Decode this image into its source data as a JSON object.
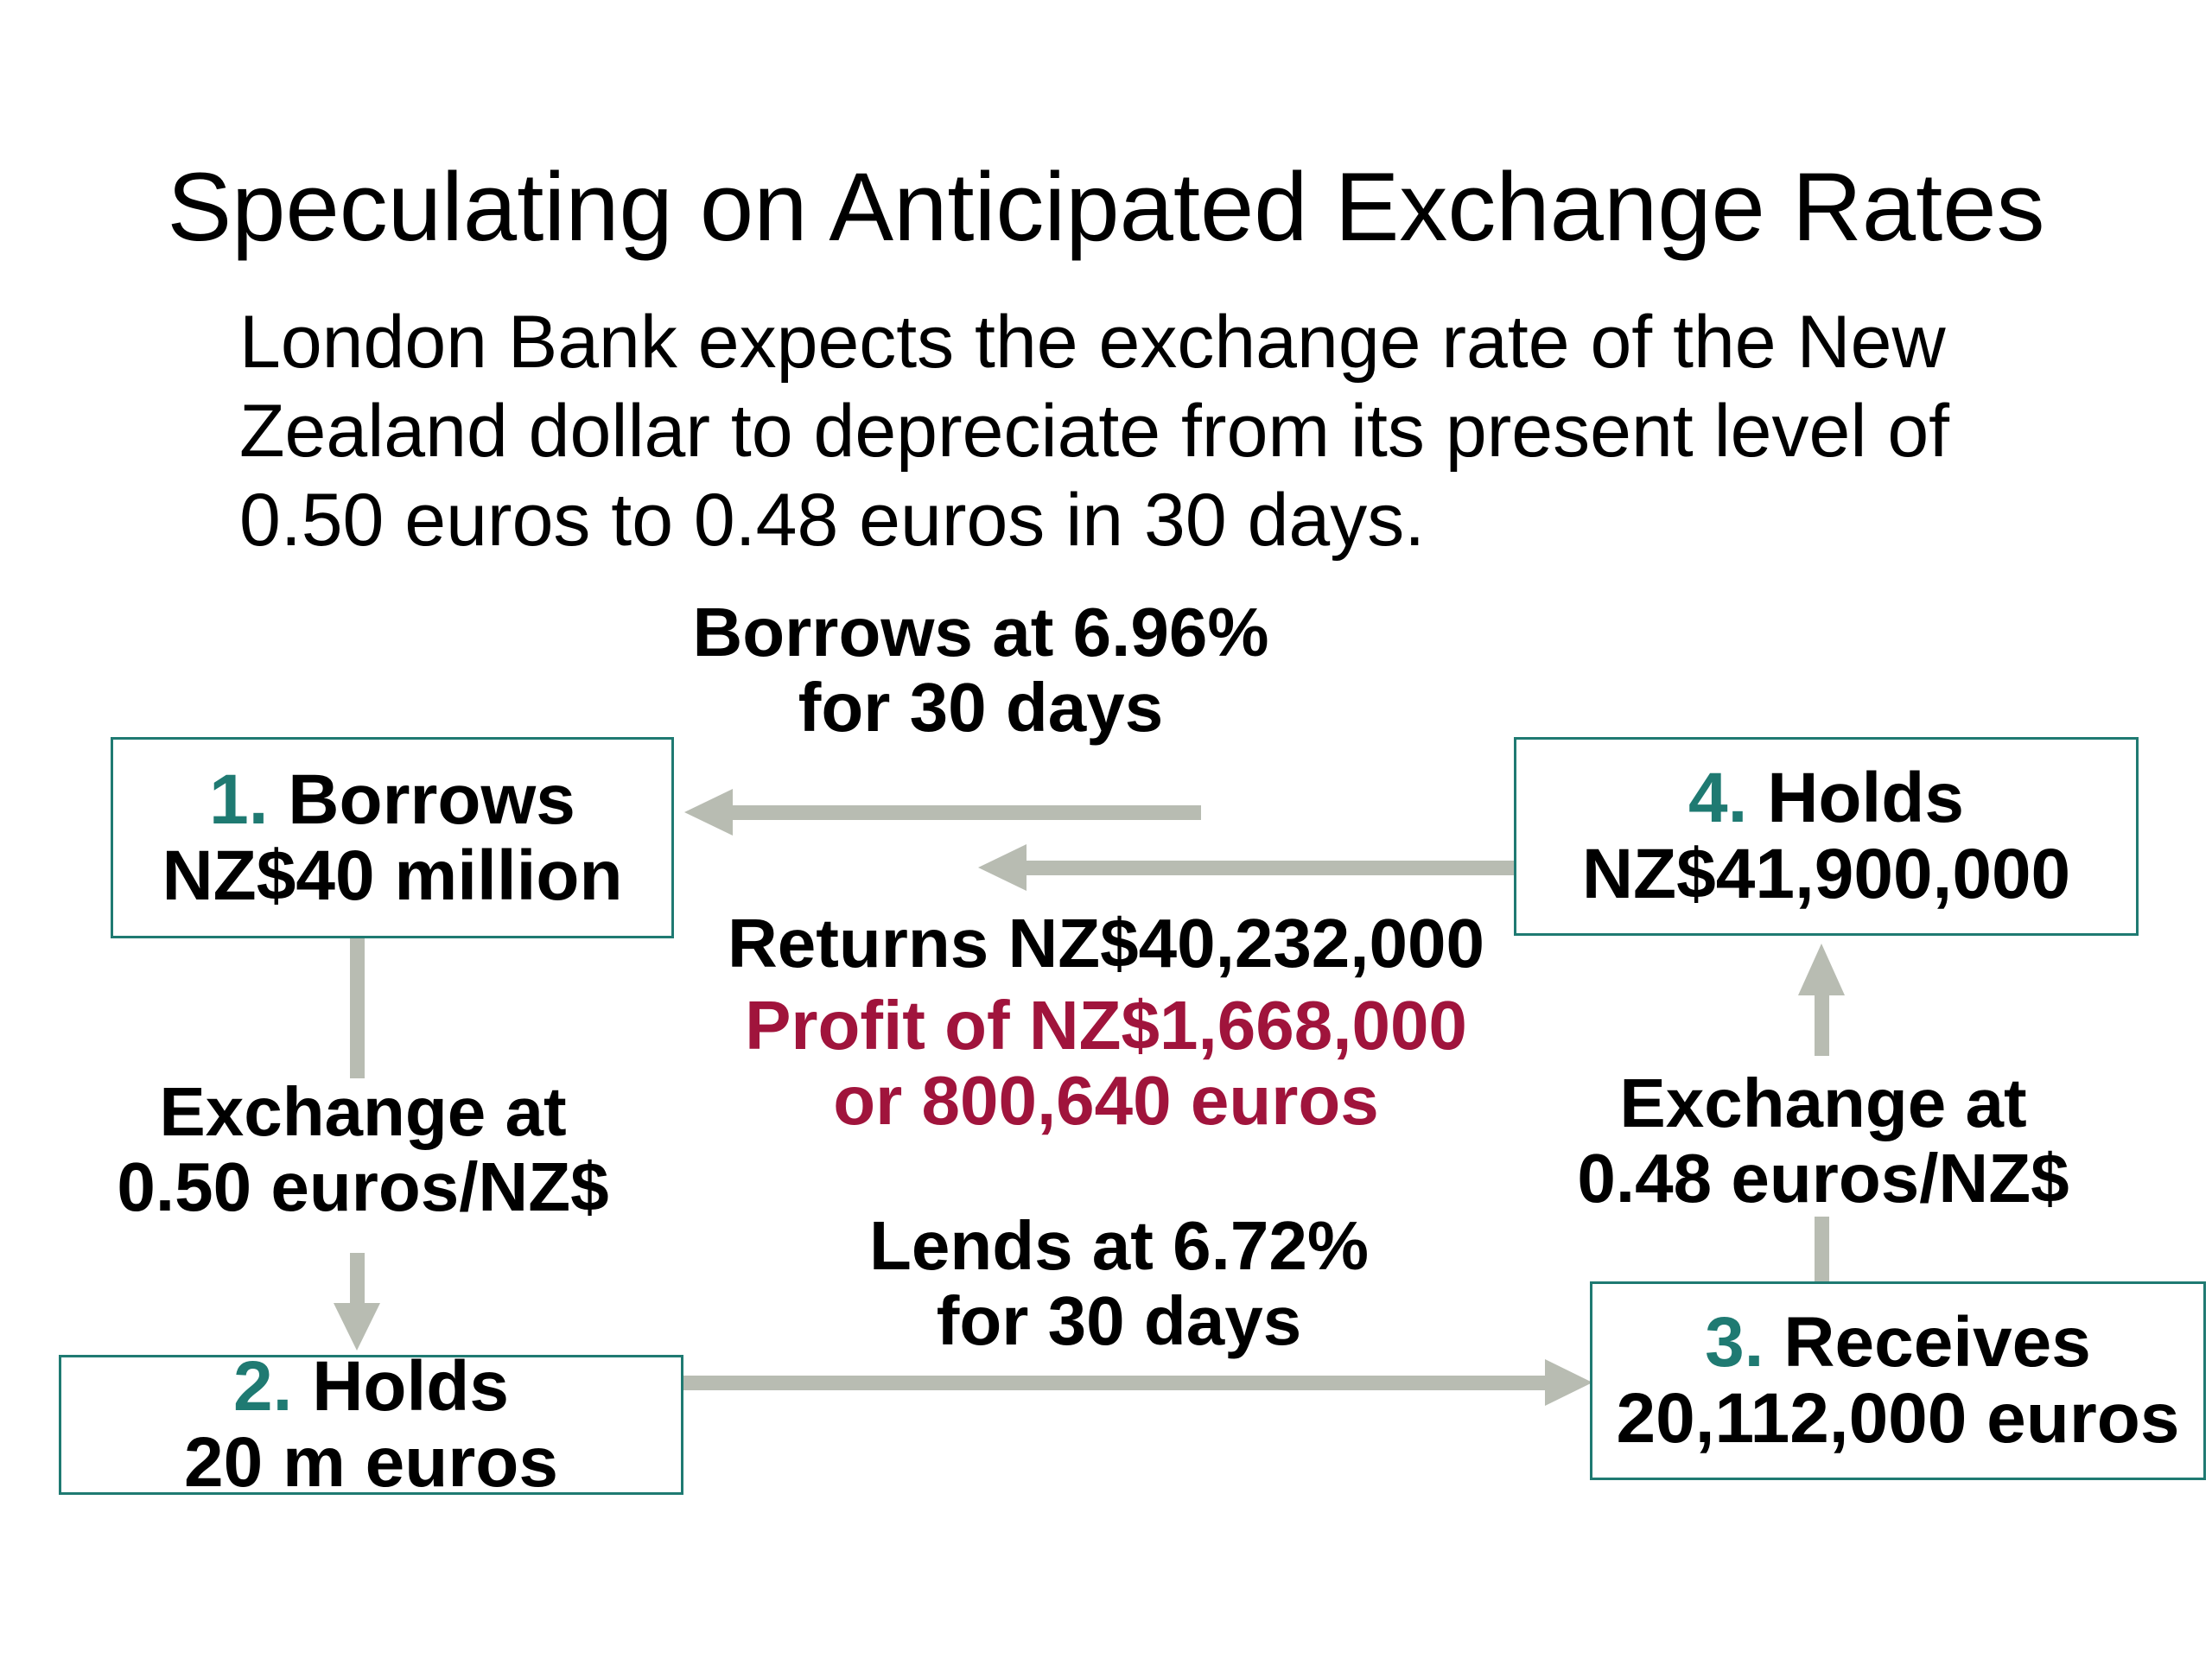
{
  "title": "Speculating on Anticipated Exchange Rates",
  "intro": {
    "line1": "London Bank expects the exchange rate of the New",
    "line2": "Zealand dollar to depreciate from its present level of",
    "line3": "0.50 euros to 0.48 euros in 30 days."
  },
  "steps": {
    "s1": {
      "num": "1.",
      "verb": "Borrows",
      "amount": "NZ$40 million"
    },
    "s2": {
      "num": "2.",
      "verb": "Holds",
      "amount": "20 m euros"
    },
    "s3": {
      "num": "3.",
      "verb": "Receives",
      "amount": "20,112,000 euros"
    },
    "s4": {
      "num": "4.",
      "verb": "Holds",
      "amount": "NZ$41,900,000"
    }
  },
  "labels": {
    "borrow_rate": {
      "line1": "Borrows at 6.96%",
      "line2": "for 30 days"
    },
    "returns": "Returns NZ$40,232,000",
    "profit": {
      "line1": "Profit of NZ$1,668,000",
      "line2": "or 800,640 euros"
    },
    "exchange_left": {
      "line1": "Exchange at",
      "line2": "0.50 euros/NZ$"
    },
    "exchange_right": {
      "line1": "Exchange at",
      "line2": "0.48 euros/NZ$"
    },
    "lend_rate": {
      "line1": "Lends at 6.72%",
      "line2": "for 30 days"
    }
  },
  "colors": {
    "step_number": "#1f7a72",
    "box_border": "#1f7a72",
    "profit_text": "#a0143c",
    "arrow": "#b8bcb2"
  }
}
